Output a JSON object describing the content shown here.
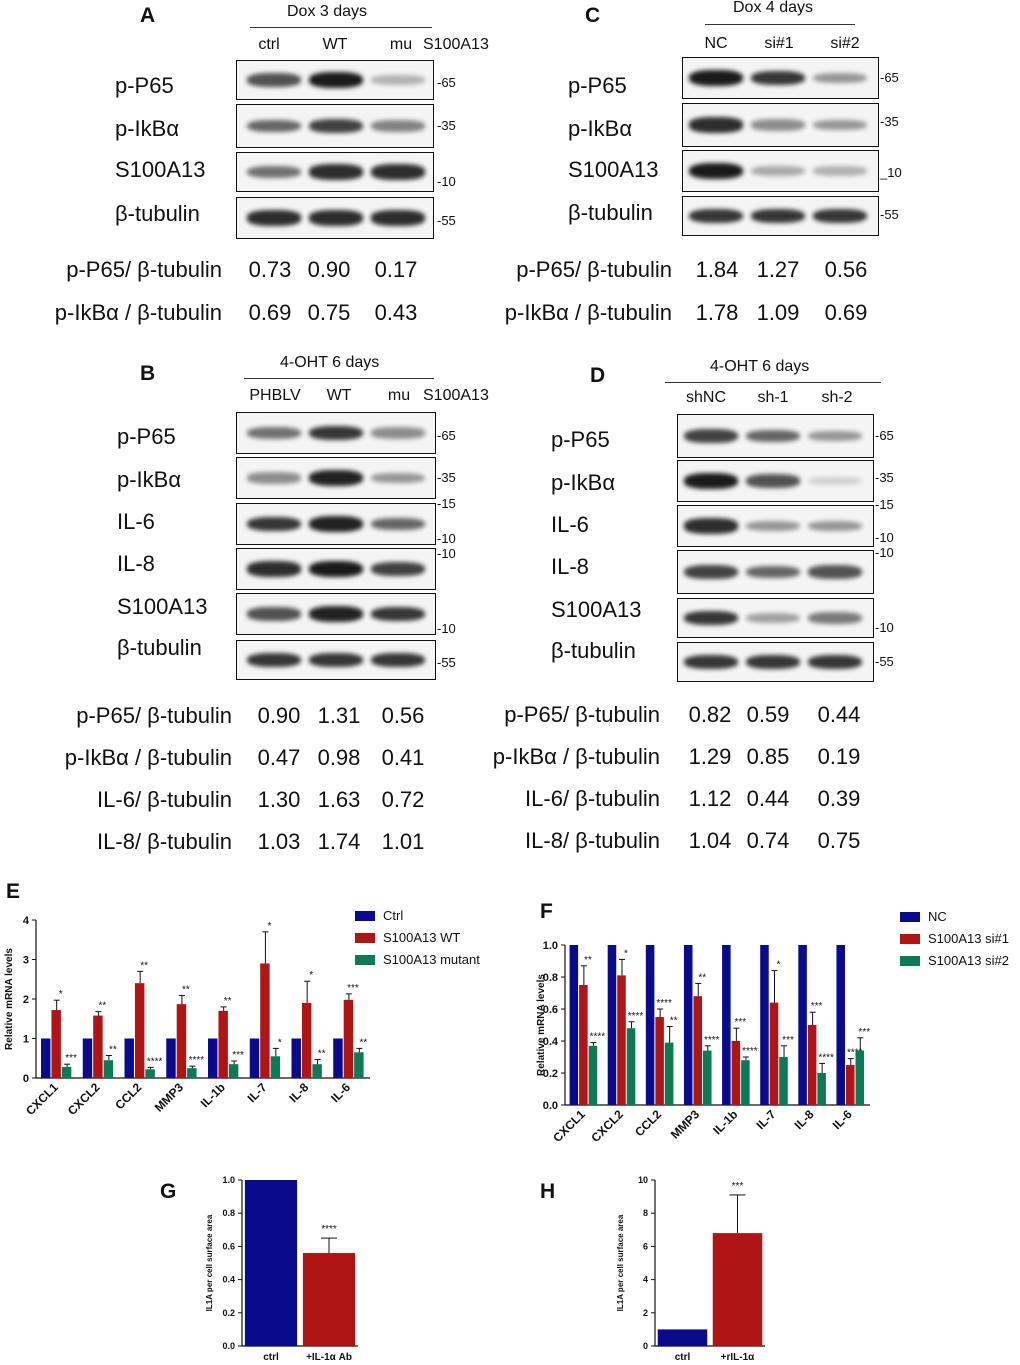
{
  "panels": {
    "A": {
      "letter": "A",
      "condition": "Dox   3 days",
      "lanes": [
        "ctrl",
        "WT",
        "mu"
      ],
      "lane_tag": "S100A13",
      "rows": [
        "p-P65",
        "p-IkBα",
        "S100A13",
        "β-tubulin"
      ],
      "markers": [
        "-65",
        "-35",
        "-10",
        "-55"
      ],
      "band_intensity": [
        [
          0.7,
          1.0,
          0.2
        ],
        [
          0.6,
          0.8,
          0.45
        ],
        [
          0.55,
          0.9,
          0.9
        ],
        [
          0.9,
          0.9,
          0.9
        ]
      ],
      "quant": [
        {
          "label": "p-P65/ β-tubulin",
          "values": [
            "0.73",
            "0.90",
            "0.17"
          ]
        },
        {
          "label": "p-IkBα / β-tubulin",
          "values": [
            "0.69",
            "0.75",
            "0.43"
          ]
        }
      ]
    },
    "B": {
      "letter": "B",
      "condition": "4-OHT   6 days",
      "lanes": [
        "PHBLV",
        "WT",
        "mu"
      ],
      "lane_tag": "S100A13",
      "rows": [
        "p-P65",
        "p-IkBα",
        "IL-6",
        "IL-8",
        "S100A13",
        "β-tubulin"
      ],
      "markers": [
        "-65",
        "-35",
        "-15",
        "-10",
        "-10",
        "-10",
        "-55"
      ],
      "band_intensity": [
        [
          0.55,
          0.85,
          0.4
        ],
        [
          0.4,
          0.95,
          0.35
        ],
        [
          0.85,
          0.95,
          0.6
        ],
        [
          0.9,
          1.0,
          0.8
        ],
        [
          0.7,
          0.95,
          0.85
        ],
        [
          0.85,
          0.85,
          0.85
        ]
      ],
      "quant": [
        {
          "label": "p-P65/ β-tubulin",
          "values": [
            "0.90",
            "1.31",
            "0.56"
          ]
        },
        {
          "label": "p-IkBα / β-tubulin",
          "values": [
            "0.47",
            "0.98",
            "0.41"
          ]
        },
        {
          "label": "IL-6/ β-tubulin",
          "values": [
            "1.30",
            "1.63",
            "0.72"
          ]
        },
        {
          "label": "IL-8/ β-tubulin",
          "values": [
            "1.03",
            "1.74",
            "1.01"
          ]
        }
      ]
    },
    "C": {
      "letter": "C",
      "condition": "Dox   4 days",
      "lanes": [
        "NC",
        "si#1",
        "si#2"
      ],
      "rows": [
        "p-P65",
        "p-IkBα",
        "S100A13",
        "β-tubulin"
      ],
      "markers": [
        "-65",
        "-35",
        "_10",
        "-55"
      ],
      "band_intensity": [
        [
          1.0,
          0.85,
          0.35
        ],
        [
          0.9,
          0.4,
          0.35
        ],
        [
          1.0,
          0.25,
          0.2
        ],
        [
          0.85,
          0.85,
          0.85
        ]
      ],
      "quant": [
        {
          "label": "p-P65/ β-tubulin",
          "values": [
            "1.84",
            "1.27",
            "0.56"
          ]
        },
        {
          "label": "p-IkBα / β-tubulin",
          "values": [
            "1.78",
            "1.09",
            "0.69"
          ]
        }
      ]
    },
    "D": {
      "letter": "D",
      "condition": "4-OHT   6 days",
      "lanes": [
        "shNC",
        "sh-1",
        "sh-2"
      ],
      "rows": [
        "p-P65",
        "p-IkBα",
        "IL-6",
        "IL-8",
        "S100A13",
        "β-tubulin"
      ],
      "markers": [
        "-65",
        "-35",
        "-15",
        "-10",
        "-10",
        "-10",
        "-55"
      ],
      "band_intensity": [
        [
          0.8,
          0.6,
          0.35
        ],
        [
          1.0,
          0.7,
          0.05
        ],
        [
          0.9,
          0.35,
          0.35
        ],
        [
          0.8,
          0.6,
          0.7
        ],
        [
          0.85,
          0.3,
          0.5
        ],
        [
          0.85,
          0.85,
          0.85
        ]
      ],
      "quant": [
        {
          "label": "p-P65/ β-tubulin",
          "values": [
            "0.82",
            "0.59",
            "0.44"
          ]
        },
        {
          "label": "p-IkBα / β-tubulin",
          "values": [
            "1.29",
            "0.85",
            "0.19"
          ]
        },
        {
          "label": "IL-6/ β-tubulin",
          "values": [
            "1.12",
            "0.44",
            "0.39"
          ]
        },
        {
          "label": "IL-8/ β-tubulin",
          "values": [
            "1.04",
            "0.74",
            "0.75"
          ]
        }
      ]
    }
  },
  "chart_data": [
    {
      "panel": "E",
      "type": "bar",
      "categories": [
        "CXCL1",
        "CXCL2",
        "CCL2",
        "MMP3",
        "IL-1b",
        "IL-7",
        "IL-8",
        "IL-6"
      ],
      "ylabel": "Relative mRNA levels",
      "ylim": [
        0,
        4
      ],
      "yticks": [
        "0",
        "1",
        "2",
        "3",
        "4"
      ],
      "legend_position": "top-right",
      "colors": [
        "#0a0a8c",
        "#b01515",
        "#0c7a55"
      ],
      "series": [
        {
          "name": "Ctrl",
          "values": [
            1,
            1,
            1,
            1,
            1,
            1,
            1,
            1
          ],
          "errors": [
            0,
            0,
            0,
            0,
            0,
            0,
            0,
            0
          ],
          "marks": [
            "",
            "",
            "",
            "",
            "",
            "",
            "",
            ""
          ]
        },
        {
          "name": "S100A13 WT",
          "values": [
            1.72,
            1.58,
            2.4,
            1.87,
            1.7,
            2.9,
            1.9,
            1.98
          ],
          "errors": [
            0.25,
            0.1,
            0.3,
            0.22,
            0.1,
            0.8,
            0.55,
            0.15
          ],
          "marks": [
            "*",
            "**",
            "**",
            "**",
            "**",
            "*",
            "*",
            "***"
          ]
        },
        {
          "name": "S100A13 mutant",
          "values": [
            0.28,
            0.45,
            0.22,
            0.25,
            0.35,
            0.55,
            0.35,
            0.65
          ],
          "errors": [
            0.07,
            0.12,
            0.05,
            0.05,
            0.08,
            0.2,
            0.12,
            0.1
          ],
          "marks": [
            "***",
            "**",
            "****",
            "****",
            "***",
            "*",
            "**",
            "**"
          ]
        }
      ]
    },
    {
      "panel": "F",
      "type": "bar",
      "categories": [
        "CXCL1",
        "CXCL2",
        "CCL2",
        "MMP3",
        "IL-1b",
        "IL-7",
        "IL-8",
        "IL-6"
      ],
      "ylabel": "Relative mRNA levels",
      "ylim": [
        0,
        1.0
      ],
      "yticks": [
        "0.0",
        "0.2",
        "0.4",
        "0.6",
        "0.8",
        "1.0"
      ],
      "legend_position": "top-right",
      "colors": [
        "#0a0a8c",
        "#b01515",
        "#0c7a55"
      ],
      "series": [
        {
          "name": "NC",
          "values": [
            1,
            1,
            1,
            1,
            1,
            1,
            1,
            1
          ],
          "errors": [
            0,
            0,
            0,
            0,
            0,
            0,
            0,
            0
          ],
          "marks": [
            "",
            "",
            "",
            "",
            "",
            "",
            "",
            ""
          ]
        },
        {
          "name": "S100A13 si#1",
          "values": [
            0.75,
            0.81,
            0.55,
            0.68,
            0.4,
            0.64,
            0.5,
            0.25
          ],
          "errors": [
            0.12,
            0.1,
            0.05,
            0.08,
            0.08,
            0.2,
            0.08,
            0.04
          ],
          "marks": [
            "**",
            "*",
            "****",
            "**",
            "***",
            "*",
            "***",
            "****"
          ]
        },
        {
          "name": "S100A13 si#2",
          "values": [
            0.37,
            0.48,
            0.39,
            0.34,
            0.28,
            0.3,
            0.2,
            0.34
          ],
          "errors": [
            0.02,
            0.04,
            0.1,
            0.03,
            0.02,
            0.07,
            0.06,
            0.08
          ],
          "marks": [
            "****",
            "****",
            "**",
            "****",
            "****",
            "***",
            "****",
            "***"
          ]
        }
      ]
    },
    {
      "panel": "G",
      "type": "bar",
      "categories": [
        "ctrl",
        "+IL-1α Ab"
      ],
      "ylabel": "IL1A per cell surface area",
      "ylim": [
        0,
        1.0
      ],
      "yticks": [
        "0.0",
        "0.2",
        "0.4",
        "0.6",
        "0.8",
        "1.0"
      ],
      "colors": [
        "#0a0a8c",
        "#b01515"
      ],
      "values": [
        1.0,
        0.56
      ],
      "errors": [
        0,
        0.09
      ],
      "marks": [
        "",
        "****"
      ]
    },
    {
      "panel": "H",
      "type": "bar",
      "categories": [
        "ctrl",
        "+rIL-1α"
      ],
      "ylabel": "IL1A per cell surface area",
      "ylim": [
        0,
        10
      ],
      "yticks": [
        "0",
        "2",
        "4",
        "6",
        "8",
        "10"
      ],
      "colors": [
        "#0a0a8c",
        "#b01515"
      ],
      "values": [
        1.0,
        6.8
      ],
      "errors": [
        0,
        2.3
      ],
      "marks": [
        "",
        "***"
      ]
    }
  ]
}
